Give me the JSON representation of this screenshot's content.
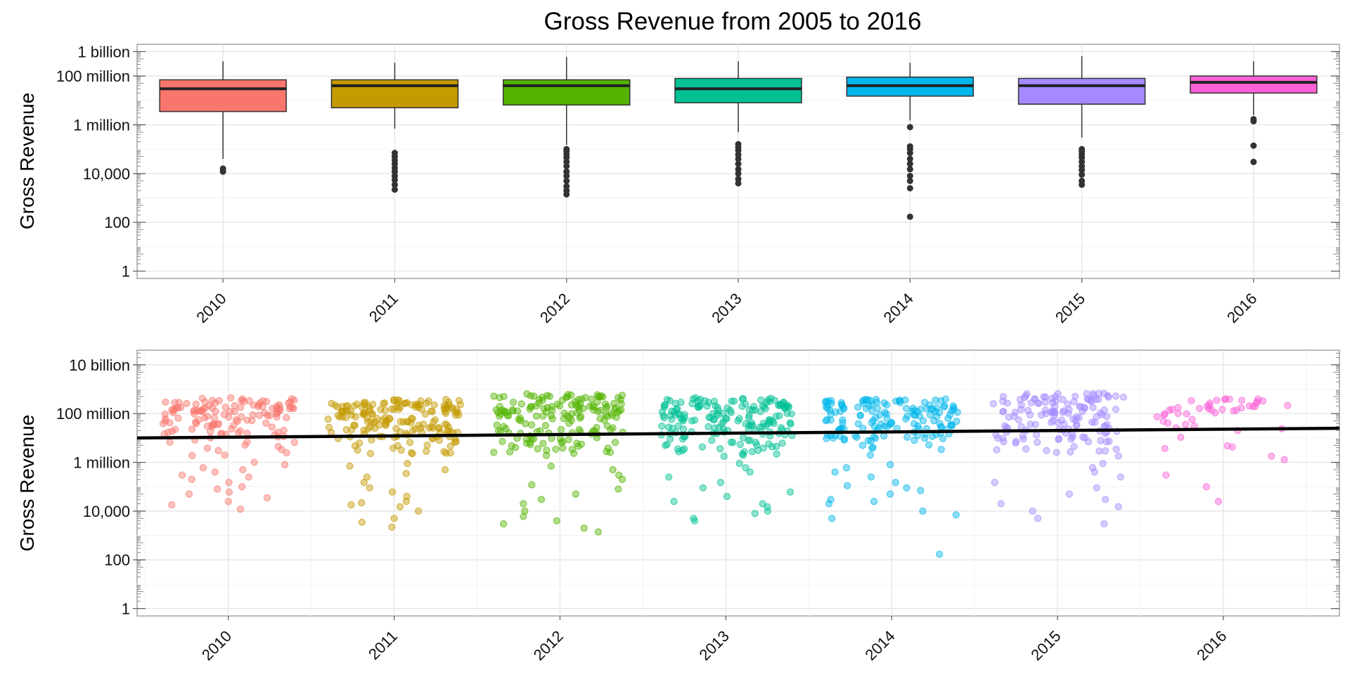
{
  "figure": {
    "title": "Gross Revenue from 2005 to 2016",
    "ylabel": "Gross Revenue"
  },
  "chart_data": [
    {
      "type": "box",
      "title": "Gross Revenue from 2005 to 2016",
      "xlabel": "",
      "ylabel": "Gross Revenue",
      "y_scale": "log10",
      "ylim": [
        0.5,
        2000000000
      ],
      "ytick_values": [
        1,
        100,
        10000,
        1000000,
        100000000,
        1000000000
      ],
      "ytick_labels": [
        "1",
        "100",
        "10,000",
        "1 million",
        "100 million",
        "1 billion"
      ],
      "categories": [
        "2010",
        "2011",
        "2012",
        "2013",
        "2014",
        "2015",
        "2016"
      ],
      "colors": [
        "#F8766D",
        "#C49A00",
        "#53B400",
        "#00C094",
        "#00B6EB",
        "#A58AFF",
        "#FB61D7"
      ],
      "grid": true,
      "legend": "none",
      "boxes": [
        {
          "category": "2010",
          "lower_whisker": 40000,
          "q1": 3500000,
          "median": 30000000,
          "q3": 70000000,
          "upper_whisker": 400000000,
          "outliers": [
            12000,
            16000
          ]
        },
        {
          "category": "2011",
          "lower_whisker": 700000,
          "q1": 5000000,
          "median": 40000000,
          "q3": 70000000,
          "upper_whisker": 350000000,
          "outliers": [
            2200,
            3500,
            5500,
            8000,
            12000,
            17000,
            25000,
            35000,
            50000,
            70000
          ]
        },
        {
          "category": "2012",
          "lower_whisker": 150000,
          "q1": 6500000,
          "median": 40000000,
          "q3": 70000000,
          "upper_whisker": 600000000,
          "outliers": [
            1400,
            2000,
            3000,
            5000,
            8000,
            12000,
            20000,
            30000,
            45000,
            60000,
            80000,
            100000
          ]
        },
        {
          "category": "2013",
          "lower_whisker": 500000,
          "q1": 8000000,
          "median": 30000000,
          "q3": 80000000,
          "upper_whisker": 400000000,
          "outliers": [
            4000,
            6000,
            10000,
            15000,
            25000,
            40000,
            60000,
            90000,
            120000,
            160000
          ]
        },
        {
          "category": "2014",
          "lower_whisker": 1500000,
          "q1": 15000000,
          "median": 40000000,
          "q3": 90000000,
          "upper_whisker": 350000000,
          "outliers": [
            170,
            2500,
            5000,
            8000,
            15000,
            25000,
            40000,
            70000,
            100000,
            130000,
            800000
          ]
        },
        {
          "category": "2015",
          "lower_whisker": 300000,
          "q1": 7000000,
          "median": 40000000,
          "q3": 80000000,
          "upper_whisker": 650000000,
          "outliers": [
            3500,
            5000,
            9000,
            14000,
            20000,
            30000,
            45000,
            60000,
            80000,
            100000
          ]
        },
        {
          "category": "2016",
          "lower_whisker": 2500000,
          "q1": 20000000,
          "median": 55000000,
          "q3": 100000000,
          "upper_whisker": 400000000,
          "outliers": [
            30000,
            140000,
            1400000,
            1700000
          ]
        }
      ]
    },
    {
      "type": "scatter",
      "xlabel": "",
      "ylabel": "Gross Revenue",
      "y_scale": "log10",
      "ylim": [
        0.5,
        40000000000
      ],
      "ytick_values": [
        1,
        100,
        10000,
        1000000,
        100000000,
        10000000000
      ],
      "ytick_labels": [
        "1",
        "100",
        "10,000",
        "1 million",
        "100 million",
        "10 billion"
      ],
      "x_range": [
        2009.45,
        2016.7
      ],
      "xtick_values": [
        2010,
        2011,
        2012,
        2013,
        2014,
        2015,
        2016
      ],
      "xtick_labels": [
        "2010",
        "2011",
        "2012",
        "2013",
        "2014",
        "2015",
        "2016"
      ],
      "colors": [
        "#F8766D",
        "#C49A00",
        "#53B400",
        "#00C094",
        "#00B6EB",
        "#A58AFF",
        "#FB61D7"
      ],
      "point_opacity": 0.45,
      "grid": true,
      "legend": "none",
      "trend_line": {
        "type": "linear",
        "from": {
          "x": 2009.45,
          "y": 10000000
        },
        "to": {
          "x": 2016.7,
          "y": 25000000
        }
      },
      "groups": [
        {
          "year": "2010",
          "x_spread": 0.4,
          "n_upper": 130,
          "upper_range": [
            1500000,
            450000000
          ],
          "lower_points": [
            12000,
            18000,
            25000,
            35000,
            50000,
            60000,
            80000,
            100000,
            150000,
            200000,
            250000,
            300000,
            400000,
            500000,
            600000,
            800000,
            1000000
          ]
        },
        {
          "year": "2011",
          "x_spread": 0.4,
          "n_upper": 175,
          "upper_range": [
            1500000,
            380000000
          ],
          "lower_points": [
            2200,
            3500,
            5000,
            10000,
            15000,
            18000,
            22000,
            25000,
            40000,
            60000,
            90000,
            150000,
            250000,
            350000,
            500000,
            700000,
            900000
          ]
        },
        {
          "year": "2012",
          "x_spread": 0.4,
          "n_upper": 165,
          "upper_range": [
            1500000,
            650000000
          ],
          "lower_points": [
            1400,
            2000,
            3000,
            4000,
            6000,
            10000,
            20000,
            30000,
            50000,
            80000,
            120000,
            200000,
            300000,
            500000,
            700000
          ]
        },
        {
          "year": "2013",
          "x_spread": 0.4,
          "n_upper": 175,
          "upper_range": [
            1500000,
            450000000
          ],
          "lower_points": [
            4000,
            5000,
            8000,
            10000,
            15000,
            20000,
            25000,
            40000,
            60000,
            90000,
            150000,
            250000,
            400000,
            600000,
            900000
          ]
        },
        {
          "year": "2014",
          "x_spread": 0.4,
          "n_upper": 150,
          "upper_range": [
            1500000,
            400000000
          ],
          "lower_points": [
            170,
            5000,
            7000,
            10000,
            20000,
            25000,
            30000,
            50000,
            70000,
            90000,
            110000,
            150000,
            250000,
            400000,
            600000,
            800000
          ]
        },
        {
          "year": "2015",
          "x_spread": 0.4,
          "n_upper": 140,
          "upper_range": [
            1500000,
            700000000
          ],
          "lower_points": [
            3000,
            5000,
            10000,
            15000,
            20000,
            30000,
            50000,
            90000,
            150000,
            250000,
            400000,
            600000,
            900000
          ]
        },
        {
          "year": "2016",
          "x_spread": 0.4,
          "n_upper": 45,
          "upper_range": [
            3000000,
            400000000
          ],
          "lower_points": [
            25000,
            100000,
            300000,
            1300000,
            1800000
          ]
        }
      ]
    }
  ]
}
